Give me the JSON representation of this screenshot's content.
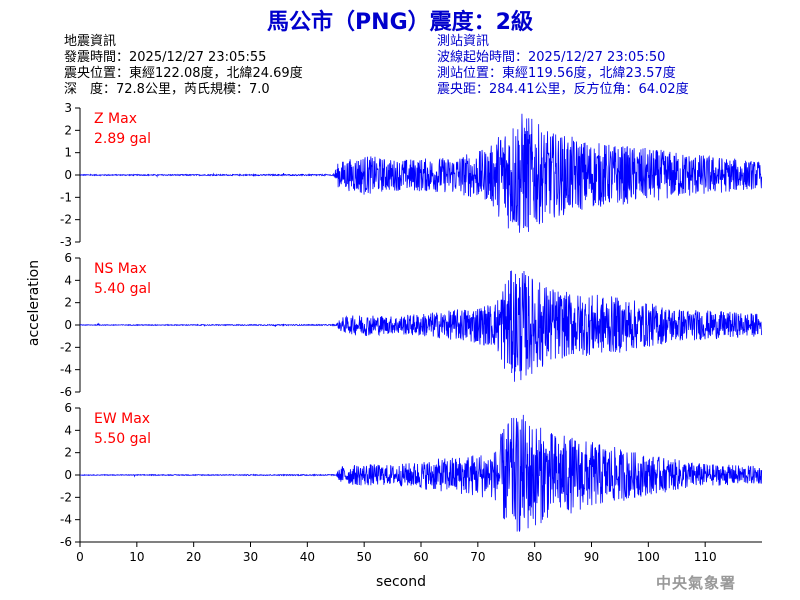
{
  "title": "馬公市（PNG）震度：2級",
  "quake_info": {
    "heading": "地震資訊",
    "origin_time": "發震時間：2025/12/27 23:05:55",
    "epicenter": "震央位置：東經122.08度，北緯24.69度",
    "depth_magnitude": "深　度：72.8公里，芮氏規模：7.0"
  },
  "station_info": {
    "heading": "測站資訊",
    "wave_start": "波線起始時間：2025/12/27 23:05:50",
    "location": "測站位置：東經119.56度，北緯23.57度",
    "distance": "震央距：284.41公里，反方位角：64.02度"
  },
  "agency": "中央氣象署",
  "chart_data": {
    "type": "line",
    "xlabel": "second",
    "ylabel": "acceleration",
    "xlim": [
      0,
      120
    ],
    "xticks": [
      0,
      10,
      20,
      30,
      40,
      50,
      60,
      70,
      80,
      90,
      100,
      110
    ],
    "line_color": "#0000ff",
    "label_color": "#ff0000",
    "panels": [
      {
        "name": "Z Max",
        "max_label": "2.89 gal",
        "max": 2.89,
        "ylim": [
          -3,
          3
        ],
        "yticks": [
          -3,
          -2,
          -1,
          0,
          1,
          2,
          3
        ],
        "envelope": [
          [
            0,
            0.02
          ],
          [
            44.5,
            0.03
          ],
          [
            45.5,
            0.6
          ],
          [
            50,
            0.9
          ],
          [
            55,
            0.7
          ],
          [
            65,
            0.8
          ],
          [
            72,
            1.2
          ],
          [
            75,
            2.4
          ],
          [
            78,
            2.89
          ],
          [
            82,
            2.0
          ],
          [
            90,
            1.5
          ],
          [
            100,
            1.2
          ],
          [
            110,
            0.9
          ],
          [
            120,
            0.6
          ]
        ]
      },
      {
        "name": "NS Max",
        "max_label": "5.40 gal",
        "max": 5.4,
        "ylim": [
          -6,
          6
        ],
        "yticks": [
          -6,
          -4,
          -2,
          0,
          2,
          4,
          6
        ],
        "envelope": [
          [
            0,
            0.03
          ],
          [
            45,
            0.05
          ],
          [
            46,
            0.7
          ],
          [
            50,
            1.0
          ],
          [
            55,
            0.8
          ],
          [
            65,
            1.3
          ],
          [
            73,
            2.0
          ],
          [
            75,
            4.5
          ],
          [
            77,
            5.4
          ],
          [
            80,
            4.2
          ],
          [
            85,
            3.0
          ],
          [
            95,
            2.5
          ],
          [
            105,
            1.5
          ],
          [
            120,
            1.0
          ]
        ]
      },
      {
        "name": "EW Max",
        "max_label": "5.50 gal",
        "max": 5.5,
        "ylim": [
          -6,
          6
        ],
        "yticks": [
          -6,
          -4,
          -2,
          0,
          2,
          4,
          6
        ],
        "envelope": [
          [
            0,
            0.03
          ],
          [
            45,
            0.05
          ],
          [
            46,
            0.8
          ],
          [
            50,
            1.0
          ],
          [
            55,
            0.9
          ],
          [
            65,
            1.6
          ],
          [
            73,
            2.2
          ],
          [
            75,
            5.0
          ],
          [
            78,
            5.5
          ],
          [
            82,
            4.0
          ],
          [
            90,
            3.0
          ],
          [
            100,
            1.8
          ],
          [
            110,
            1.0
          ],
          [
            120,
            0.8
          ]
        ]
      }
    ]
  }
}
